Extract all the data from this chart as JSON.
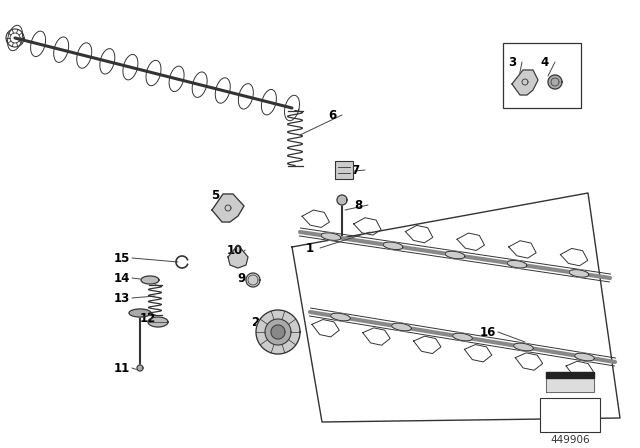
{
  "bg_color": "#ffffff",
  "line_color": "#333333",
  "label_color": "#000000",
  "part_number": "449906",
  "figsize": [
    6.4,
    4.48
  ],
  "dpi": 100,
  "label_positions": {
    "1": [
      310,
      248,
      370,
      232
    ],
    "2": [
      255,
      322,
      290,
      332
    ],
    "3": [
      512,
      62,
      518,
      82
    ],
    "4": [
      545,
      62,
      548,
      76
    ],
    "5": [
      215,
      195,
      225,
      210
    ],
    "6": [
      332,
      115,
      300,
      135
    ],
    "7": [
      355,
      170,
      345,
      172
    ],
    "8": [
      358,
      205,
      345,
      210
    ],
    "9": [
      242,
      278,
      252,
      282
    ],
    "10": [
      235,
      250,
      238,
      258
    ],
    "11": [
      122,
      368,
      138,
      370
    ],
    "12": [
      148,
      318,
      158,
      322
    ],
    "13": [
      122,
      298,
      155,
      296
    ],
    "14": [
      122,
      278,
      148,
      280
    ],
    "15": [
      122,
      258,
      178,
      262
    ],
    "16": [
      488,
      332,
      525,
      342
    ]
  }
}
